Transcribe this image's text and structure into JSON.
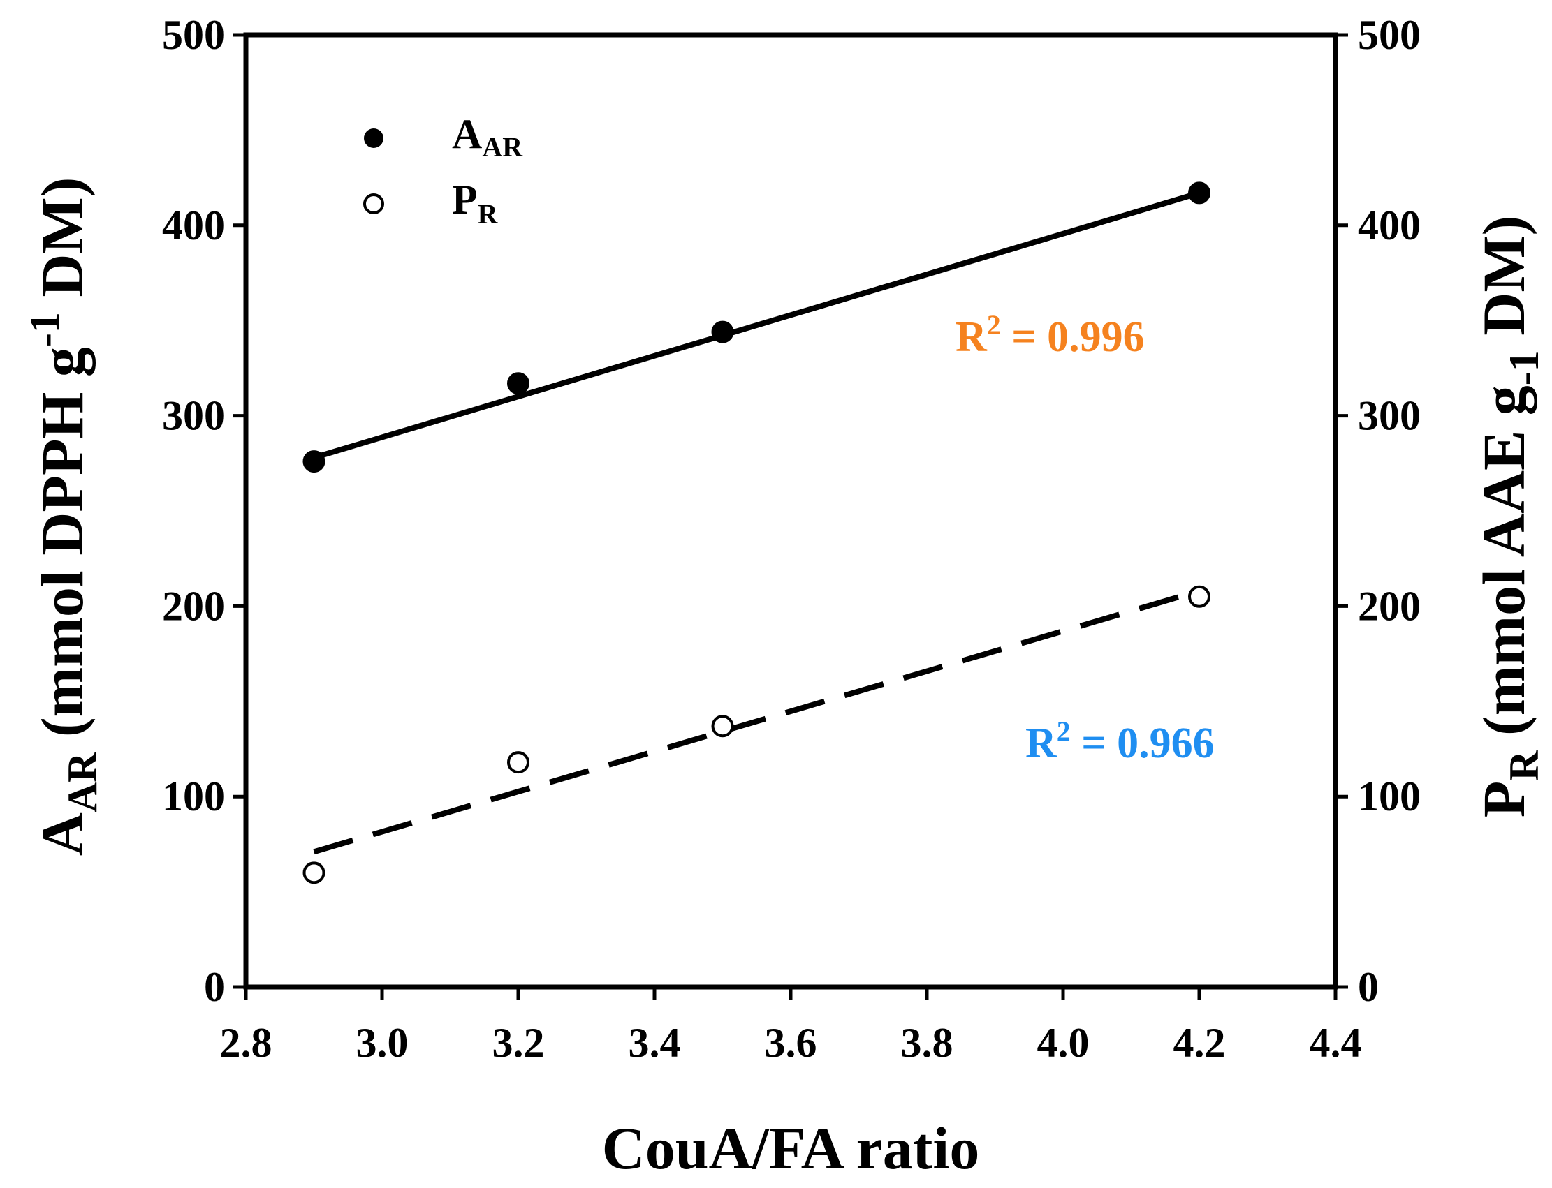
{
  "chart_data": {
    "type": "scatter",
    "xlabel": "CouA/FA ratio",
    "ylabel_left": {
      "main": "A",
      "sub": "AR",
      "rest": " (mmol DPPH g",
      "sup": "-1",
      "end": " DM)"
    },
    "ylabel_right": {
      "main": "P",
      "sub": "R",
      "rest": " (mmol AAE g",
      "sub2": "-1",
      "end": " DM)"
    },
    "xlim": [
      2.8,
      4.4
    ],
    "ylim": [
      0,
      500
    ],
    "x_ticks": [
      "2.8",
      "3.0",
      "3.2",
      "3.4",
      "3.6",
      "3.8",
      "4.0",
      "4.2",
      "4.4"
    ],
    "y_ticks": [
      "0",
      "100",
      "200",
      "300",
      "400",
      "500"
    ],
    "series": [
      {
        "name": "A_AR",
        "label_main": "A",
        "label_sub": "AR",
        "marker": "filled-circle",
        "x": [
          2.9,
          3.2,
          3.5,
          4.2
        ],
        "y": [
          276,
          317,
          344,
          417
        ],
        "fit": {
          "style": "solid",
          "x": [
            2.9,
            4.2
          ],
          "y": [
            278,
            417
          ]
        },
        "r2_label": "R",
        "r2_sup": "2",
        "r2_value": " = 0.996",
        "r2_color": "#f5821f"
      },
      {
        "name": "P_R",
        "label_main": "P",
        "label_sub": "R",
        "marker": "open-circle",
        "x": [
          2.9,
          3.2,
          3.5,
          4.2
        ],
        "y": [
          60,
          118,
          137,
          205
        ],
        "fit": {
          "style": "dashed",
          "x": [
            2.9,
            4.2
          ],
          "y": [
            71,
            208
          ]
        },
        "r2_label": "R",
        "r2_sup": "2",
        "r2_value": " = 0.966",
        "r2_color": "#1f8ef1"
      }
    ]
  }
}
